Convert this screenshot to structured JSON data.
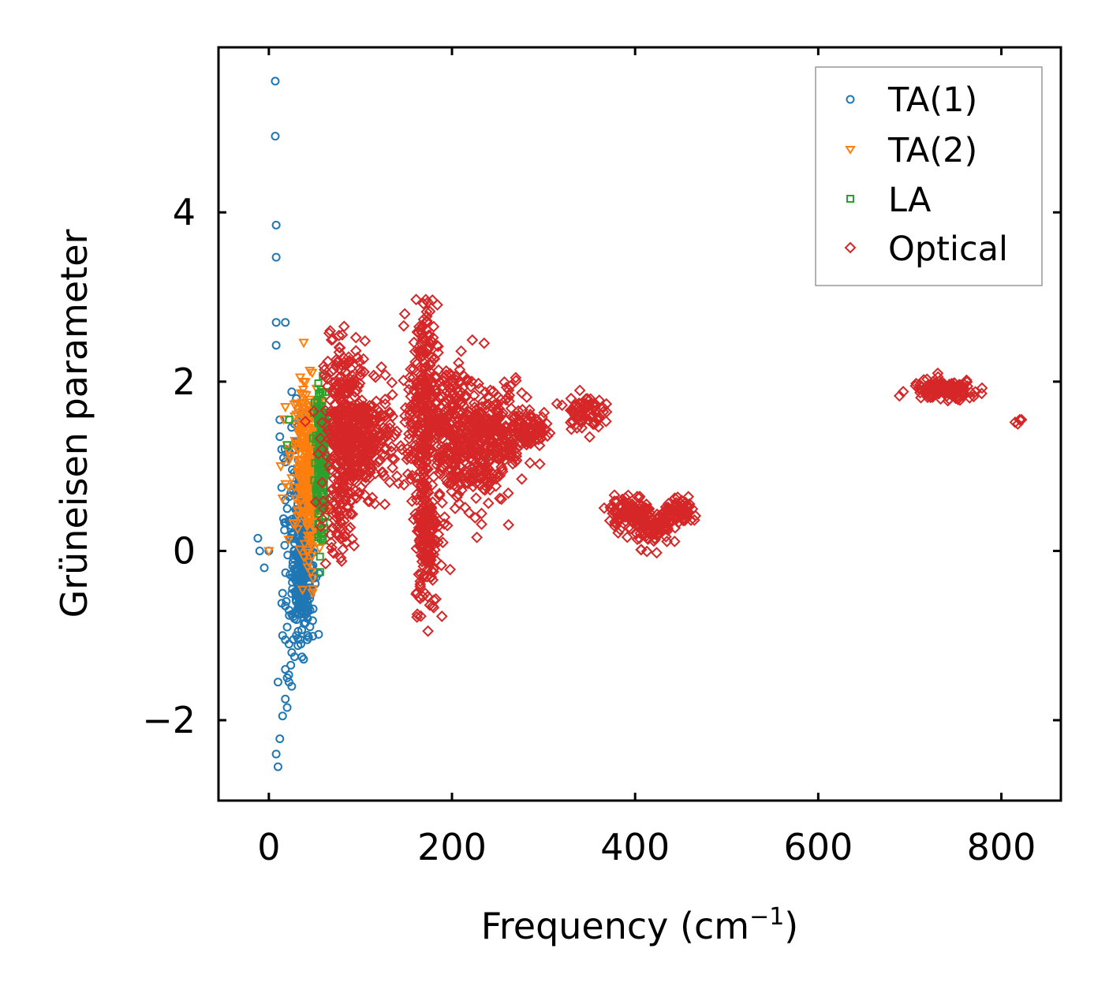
{
  "chart_data": {
    "type": "scatter",
    "title": "",
    "xlabel": "Frequency (cm",
    "xlabel_sup": "−1",
    "xlabel_close": ")",
    "ylabel": "Grüneisen parameter",
    "xlim": [
      -55,
      865
    ],
    "ylim": [
      -2.95,
      5.95
    ],
    "xticks": [
      0,
      200,
      400,
      600,
      800
    ],
    "xtick_labels": [
      "0",
      "200",
      "400",
      "600",
      "800"
    ],
    "yticks": [
      -2,
      0,
      2,
      4
    ],
    "ytick_labels": [
      "−2",
      "0",
      "2",
      "4"
    ],
    "grid": false,
    "legend_position": "top-right",
    "series": [
      {
        "name": "TA(1)",
        "marker": "circle",
        "color": "#1f77b4",
        "points": [
          [
            7,
            5.55
          ],
          [
            7,
            4.9
          ],
          [
            8,
            3.85
          ],
          [
            8,
            3.47
          ],
          [
            8,
            2.7
          ],
          [
            18,
            2.7
          ],
          [
            8,
            2.43
          ],
          [
            -12,
            0.15
          ],
          [
            -10,
            0.0
          ],
          [
            -5,
            -0.2
          ],
          [
            0,
            0.0
          ],
          [
            10,
            -1.55
          ],
          [
            12,
            -2.22
          ],
          [
            8,
            -2.4
          ],
          [
            10,
            -2.55
          ],
          [
            15,
            -1.95
          ],
          [
            18,
            -1.75
          ],
          [
            20,
            -1.85
          ],
          [
            18,
            -1.4
          ],
          [
            20,
            -1.5
          ],
          [
            22,
            -1.55
          ],
          [
            25,
            -1.6
          ],
          [
            24,
            -1.35
          ],
          [
            15,
            -1.0
          ],
          [
            18,
            -1.05
          ],
          [
            20,
            -0.9
          ],
          [
            22,
            -1.1
          ],
          [
            25,
            -1.2
          ],
          [
            28,
            -1.25
          ],
          [
            30,
            -1.0
          ],
          [
            32,
            -0.95
          ],
          [
            35,
            -1.1
          ],
          [
            38,
            -1.28
          ],
          [
            40,
            -0.85
          ],
          [
            42,
            -1.05
          ],
          [
            15,
            -0.5
          ],
          [
            18,
            -0.65
          ],
          [
            22,
            -0.7
          ],
          [
            25,
            -0.75
          ],
          [
            28,
            -0.8
          ],
          [
            30,
            -0.6
          ],
          [
            35,
            -0.7
          ],
          [
            40,
            -0.75
          ],
          [
            45,
            -0.7
          ],
          [
            25,
            1.88
          ],
          [
            30,
            1.8
          ],
          [
            35,
            1.6
          ],
          [
            28,
            1.5
          ],
          [
            32,
            1.3
          ],
          [
            12,
            1.55
          ],
          [
            12,
            1.35
          ],
          [
            14,
            1.2
          ],
          [
            18,
            1.05
          ],
          [
            14,
            0.75
          ],
          [
            18,
            0.6
          ],
          [
            16,
            0.38
          ],
          [
            20,
            0.5
          ],
          [
            25,
            0.2
          ],
          [
            28,
            0.0
          ],
          [
            30,
            -0.2
          ],
          [
            32,
            -0.35
          ],
          [
            35,
            -0.3
          ],
          [
            38,
            0.1
          ],
          [
            40,
            -0.1
          ],
          [
            42,
            0.3
          ],
          [
            45,
            0.0
          ],
          [
            36,
            0.6
          ],
          [
            42,
            0.5
          ]
        ],
        "clusters": [
          {
            "cx": 38,
            "cy": -0.15,
            "sx": 6,
            "sy": 0.42,
            "n": 260
          },
          {
            "cx": 30,
            "cy": 0.4,
            "sx": 8,
            "sy": 0.55,
            "n": 80
          }
        ]
      },
      {
        "name": "TA(2)",
        "marker": "triangle-down",
        "color": "#ff7f0e",
        "points": [
          [
            0,
            0.0
          ],
          [
            13,
            1.0
          ],
          [
            15,
            0.62
          ],
          [
            18,
            1.7
          ],
          [
            38,
            1.85
          ],
          [
            48,
            -0.45
          ],
          [
            46,
            -0.25
          ],
          [
            20,
            1.25
          ]
        ],
        "clusters": [
          {
            "cx": 42,
            "cy": 1.15,
            "sx": 9,
            "sy": 0.4,
            "n": 220
          },
          {
            "cx": 44,
            "cy": 0.4,
            "sx": 6,
            "sy": 0.4,
            "n": 80
          }
        ]
      },
      {
        "name": "LA",
        "marker": "square",
        "color": "#2ca02c",
        "points": [
          [
            54,
            1.98
          ],
          [
            22,
            1.55
          ],
          [
            20,
            1.25
          ],
          [
            50,
            1.75
          ],
          [
            55,
            1.65
          ],
          [
            58,
            0.2
          ],
          [
            56,
            -0.25
          ]
        ],
        "clusters": [
          {
            "cx": 57,
            "cy": 1.25,
            "sx": 3,
            "sy": 0.35,
            "n": 150
          },
          {
            "cx": 57,
            "cy": 0.6,
            "sx": 2.5,
            "sy": 0.3,
            "n": 50
          }
        ]
      },
      {
        "name": "Optical",
        "marker": "diamond",
        "color": "#d62728",
        "points": [
          [
            67,
            2.6
          ],
          [
            70,
            2.5
          ],
          [
            62,
            -0.15
          ],
          [
            68,
            0.1
          ],
          [
            60,
            0.5
          ],
          [
            180,
            2.65
          ],
          [
            175,
            2.55
          ],
          [
            210,
            2.36
          ],
          [
            180,
            -0.67
          ],
          [
            198,
            -0.22
          ],
          [
            192,
            0.4
          ],
          [
            190,
            0.1
          ],
          [
            195,
            0.3
          ],
          [
            262,
            1.9
          ],
          [
            330,
            1.8
          ],
          [
            820,
            1.55
          ],
          [
            815,
            1.52
          ],
          [
            822,
            1.55
          ],
          [
            818,
            1.5
          ]
        ],
        "clusters": [
          {
            "cx": 85,
            "cy": 1.45,
            "sx": 12,
            "sy": 0.5,
            "n": 320
          },
          {
            "cx": 110,
            "cy": 1.3,
            "sx": 15,
            "sy": 0.3,
            "n": 200
          },
          {
            "cx": 78,
            "cy": 0.7,
            "sx": 8,
            "sy": 0.35,
            "n": 80
          },
          {
            "cx": 168,
            "cy": 1.7,
            "sx": 8,
            "sy": 0.6,
            "n": 260
          },
          {
            "cx": 172,
            "cy": 0.2,
            "sx": 6,
            "sy": 0.45,
            "n": 180
          },
          {
            "cx": 200,
            "cy": 1.4,
            "sx": 14,
            "sy": 0.4,
            "n": 240
          },
          {
            "cx": 230,
            "cy": 1.2,
            "sx": 14,
            "sy": 0.35,
            "n": 200
          },
          {
            "cx": 260,
            "cy": 1.45,
            "sx": 15,
            "sy": 0.25,
            "n": 160
          },
          {
            "cx": 290,
            "cy": 1.45,
            "sx": 10,
            "sy": 0.1,
            "n": 50
          },
          {
            "cx": 344,
            "cy": 1.65,
            "sx": 10,
            "sy": 0.1,
            "n": 70
          },
          {
            "cx": 395,
            "cy": 0.45,
            "sx": 12,
            "sy": 0.1,
            "n": 110
          },
          {
            "cx": 420,
            "cy": 0.25,
            "sx": 10,
            "sy": 0.1,
            "n": 80
          },
          {
            "cx": 450,
            "cy": 0.45,
            "sx": 10,
            "sy": 0.07,
            "n": 70
          },
          {
            "cx": 738,
            "cy": 1.9,
            "sx": 18,
            "sy": 0.06,
            "n": 140
          }
        ]
      }
    ]
  }
}
